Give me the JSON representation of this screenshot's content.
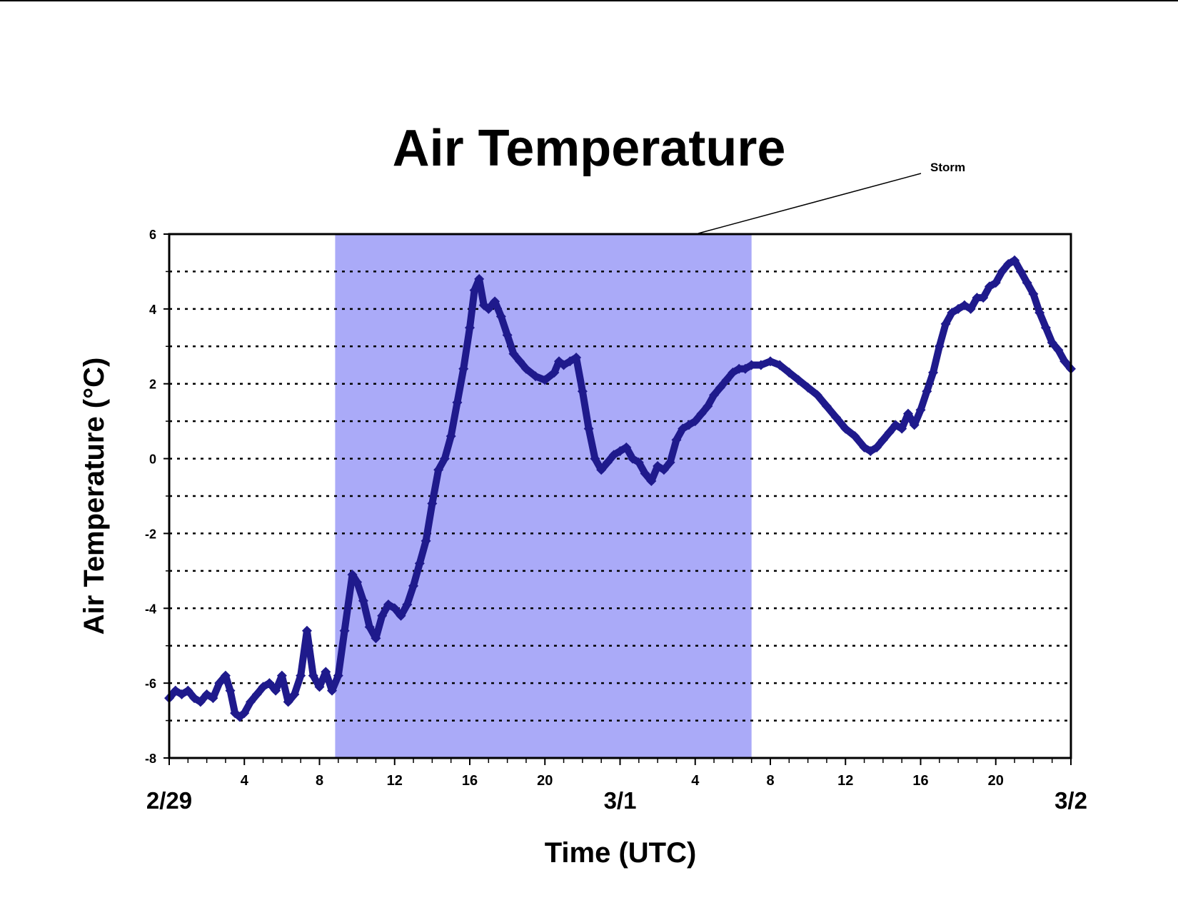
{
  "chart_data": {
    "type": "scatter",
    "title": "Air Temperature",
    "xlabel": "Time (UTC)",
    "ylabel": "Air Temperature (°C)",
    "xlim": [
      "2/29 00:00",
      "3/2 00:00"
    ],
    "ylim": [
      -8,
      6
    ],
    "yticks": [
      -8,
      -6,
      -4,
      -2,
      0,
      2,
      4,
      6
    ],
    "xtick_labels": [
      {
        "hour": 4,
        "label": "4"
      },
      {
        "hour": 8,
        "label": "8"
      },
      {
        "hour": 12,
        "label": "12"
      },
      {
        "hour": 16,
        "label": "16"
      },
      {
        "hour": 20,
        "label": "20"
      },
      {
        "hour": 28,
        "label": "4"
      },
      {
        "hour": 32,
        "label": "8"
      },
      {
        "hour": 36,
        "label": "12"
      },
      {
        "hour": 40,
        "label": "16"
      },
      {
        "hour": 44,
        "label": "20"
      }
    ],
    "date_labels": [
      {
        "hour": 0,
        "label": "2/29"
      },
      {
        "hour": 24,
        "label": "3/1"
      },
      {
        "hour": 48,
        "label": "3/2"
      }
    ],
    "grid": "horizontal dotted lines every 1 °C",
    "shaded_region": {
      "start": "2/29 08:50",
      "end": "3/1 07:00",
      "color": "#aaaaf8"
    },
    "annotation": {
      "text": "Storm"
    },
    "series": [
      {
        "marker": "diamond",
        "color": "#1f1a8c",
        "points": [
          {
            "t": "2/29 00:00",
            "y": -6.4
          },
          {
            "t": "2/29 00:20",
            "y": -6.2
          },
          {
            "t": "2/29 00:40",
            "y": -6.3
          },
          {
            "t": "2/29 01:00",
            "y": -6.2
          },
          {
            "t": "2/29 01:20",
            "y": -6.4
          },
          {
            "t": "2/29 01:40",
            "y": -6.5
          },
          {
            "t": "2/29 02:00",
            "y": -6.3
          },
          {
            "t": "2/29 02:20",
            "y": -6.4
          },
          {
            "t": "2/29 02:40",
            "y": -6.0
          },
          {
            "t": "2/29 03:00",
            "y": -5.8
          },
          {
            "t": "2/29 03:15",
            "y": -6.2
          },
          {
            "t": "2/29 03:30",
            "y": -6.8
          },
          {
            "t": "2/29 03:45",
            "y": -6.9
          },
          {
            "t": "2/29 04:00",
            "y": -6.8
          },
          {
            "t": "2/29 04:20",
            "y": -6.5
          },
          {
            "t": "2/29 04:40",
            "y": -6.3
          },
          {
            "t": "2/29 05:00",
            "y": -6.1
          },
          {
            "t": "2/29 05:20",
            "y": -6.0
          },
          {
            "t": "2/29 05:40",
            "y": -6.2
          },
          {
            "t": "2/29 06:00",
            "y": -5.8
          },
          {
            "t": "2/29 06:20",
            "y": -6.5
          },
          {
            "t": "2/29 06:40",
            "y": -6.3
          },
          {
            "t": "2/29 07:00",
            "y": -5.8
          },
          {
            "t": "2/29 07:20",
            "y": -4.6
          },
          {
            "t": "2/29 07:40",
            "y": -5.8
          },
          {
            "t": "2/29 08:00",
            "y": -6.1
          },
          {
            "t": "2/29 08:20",
            "y": -5.7
          },
          {
            "t": "2/29 08:40",
            "y": -6.2
          },
          {
            "t": "2/29 09:00",
            "y": -5.8
          },
          {
            "t": "2/29 09:20",
            "y": -4.6
          },
          {
            "t": "2/29 09:45",
            "y": -3.1
          },
          {
            "t": "2/29 10:00",
            "y": -3.3
          },
          {
            "t": "2/29 10:20",
            "y": -3.8
          },
          {
            "t": "2/29 10:40",
            "y": -4.5
          },
          {
            "t": "2/29 11:00",
            "y": -4.8
          },
          {
            "t": "2/29 11:20",
            "y": -4.2
          },
          {
            "t": "2/29 11:40",
            "y": -3.9
          },
          {
            "t": "2/29 12:00",
            "y": -4.0
          },
          {
            "t": "2/29 12:20",
            "y": -4.2
          },
          {
            "t": "2/29 12:40",
            "y": -3.9
          },
          {
            "t": "2/29 13:00",
            "y": -3.4
          },
          {
            "t": "2/29 13:20",
            "y": -2.8
          },
          {
            "t": "2/29 13:40",
            "y": -2.2
          },
          {
            "t": "2/29 14:00",
            "y": -1.2
          },
          {
            "t": "2/29 14:20",
            "y": -0.3
          },
          {
            "t": "2/29 14:40",
            "y": 0.0
          },
          {
            "t": "2/29 15:00",
            "y": 0.6
          },
          {
            "t": "2/29 15:20",
            "y": 1.5
          },
          {
            "t": "2/29 15:40",
            "y": 2.4
          },
          {
            "t": "2/29 16:00",
            "y": 3.5
          },
          {
            "t": "2/29 16:15",
            "y": 4.5
          },
          {
            "t": "2/29 16:30",
            "y": 4.8
          },
          {
            "t": "2/29 16:45",
            "y": 4.1
          },
          {
            "t": "2/29 17:00",
            "y": 4.0
          },
          {
            "t": "2/29 17:20",
            "y": 4.2
          },
          {
            "t": "2/29 17:40",
            "y": 3.8
          },
          {
            "t": "2/29 18:00",
            "y": 3.3
          },
          {
            "t": "2/29 18:20",
            "y": 2.8
          },
          {
            "t": "2/29 18:40",
            "y": 2.6
          },
          {
            "t": "2/29 19:00",
            "y": 2.4
          },
          {
            "t": "2/29 19:30",
            "y": 2.2
          },
          {
            "t": "2/29 20:00",
            "y": 2.1
          },
          {
            "t": "2/29 20:30",
            "y": 2.3
          },
          {
            "t": "2/29 20:45",
            "y": 2.6
          },
          {
            "t": "2/29 21:00",
            "y": 2.5
          },
          {
            "t": "2/29 21:20",
            "y": 2.6
          },
          {
            "t": "2/29 21:40",
            "y": 2.7
          },
          {
            "t": "2/29 22:00",
            "y": 1.8
          },
          {
            "t": "2/29 22:20",
            "y": 0.8
          },
          {
            "t": "2/29 22:40",
            "y": 0.0
          },
          {
            "t": "2/29 23:00",
            "y": -0.3
          },
          {
            "t": "2/29 23:20",
            "y": -0.1
          },
          {
            "t": "2/29 23:40",
            "y": 0.1
          },
          {
            "t": "3/1 00:00",
            "y": 0.2
          },
          {
            "t": "3/1 00:20",
            "y": 0.3
          },
          {
            "t": "3/1 00:40",
            "y": 0.0
          },
          {
            "t": "3/1 01:00",
            "y": -0.1
          },
          {
            "t": "3/1 01:20",
            "y": -0.4
          },
          {
            "t": "3/1 01:40",
            "y": -0.6
          },
          {
            "t": "3/1 02:00",
            "y": -0.2
          },
          {
            "t": "3/1 02:20",
            "y": -0.3
          },
          {
            "t": "3/1 02:40",
            "y": -0.1
          },
          {
            "t": "3/1 03:00",
            "y": 0.5
          },
          {
            "t": "3/1 03:20",
            "y": 0.8
          },
          {
            "t": "3/1 03:40",
            "y": 0.9
          },
          {
            "t": "3/1 04:00",
            "y": 1.0
          },
          {
            "t": "3/1 04:20",
            "y": 1.2
          },
          {
            "t": "3/1 04:40",
            "y": 1.4
          },
          {
            "t": "3/1 05:00",
            "y": 1.7
          },
          {
            "t": "3/1 05:20",
            "y": 1.9
          },
          {
            "t": "3/1 05:40",
            "y": 2.1
          },
          {
            "t": "3/1 06:00",
            "y": 2.3
          },
          {
            "t": "3/1 06:20",
            "y": 2.4
          },
          {
            "t": "3/1 06:40",
            "y": 2.4
          },
          {
            "t": "3/1 07:00",
            "y": 2.5
          },
          {
            "t": "3/1 07:30",
            "y": 2.5
          },
          {
            "t": "3/1 08:00",
            "y": 2.6
          },
          {
            "t": "3/1 08:30",
            "y": 2.5
          },
          {
            "t": "3/1 09:00",
            "y": 2.3
          },
          {
            "t": "3/1 09:30",
            "y": 2.1
          },
          {
            "t": "3/1 10:00",
            "y": 1.9
          },
          {
            "t": "3/1 10:30",
            "y": 1.7
          },
          {
            "t": "3/1 11:00",
            "y": 1.4
          },
          {
            "t": "3/1 11:30",
            "y": 1.1
          },
          {
            "t": "3/1 12:00",
            "y": 0.8
          },
          {
            "t": "3/1 12:30",
            "y": 0.6
          },
          {
            "t": "3/1 13:00",
            "y": 0.3
          },
          {
            "t": "3/1 13:20",
            "y": 0.2
          },
          {
            "t": "3/1 13:40",
            "y": 0.3
          },
          {
            "t": "3/1 14:00",
            "y": 0.5
          },
          {
            "t": "3/1 14:20",
            "y": 0.7
          },
          {
            "t": "3/1 14:40",
            "y": 0.9
          },
          {
            "t": "3/1 15:00",
            "y": 0.8
          },
          {
            "t": "3/1 15:20",
            "y": 1.2
          },
          {
            "t": "3/1 15:40",
            "y": 0.9
          },
          {
            "t": "3/1 16:00",
            "y": 1.3
          },
          {
            "t": "3/1 16:20",
            "y": 1.8
          },
          {
            "t": "3/1 16:40",
            "y": 2.3
          },
          {
            "t": "3/1 17:00",
            "y": 3.0
          },
          {
            "t": "3/1 17:20",
            "y": 3.6
          },
          {
            "t": "3/1 17:40",
            "y": 3.9
          },
          {
            "t": "3/1 18:00",
            "y": 4.0
          },
          {
            "t": "3/1 18:20",
            "y": 4.1
          },
          {
            "t": "3/1 18:40",
            "y": 4.0
          },
          {
            "t": "3/1 19:00",
            "y": 4.3
          },
          {
            "t": "3/1 19:20",
            "y": 4.3
          },
          {
            "t": "3/1 19:40",
            "y": 4.6
          },
          {
            "t": "3/1 20:00",
            "y": 4.7
          },
          {
            "t": "3/1 20:20",
            "y": 5.0
          },
          {
            "t": "3/1 20:40",
            "y": 5.2
          },
          {
            "t": "3/1 21:00",
            "y": 5.3
          },
          {
            "t": "3/1 21:20",
            "y": 5.0
          },
          {
            "t": "3/1 21:40",
            "y": 4.7
          },
          {
            "t": "3/1 22:00",
            "y": 4.4
          },
          {
            "t": "3/1 22:20",
            "y": 3.9
          },
          {
            "t": "3/1 22:40",
            "y": 3.5
          },
          {
            "t": "3/1 23:00",
            "y": 3.1
          },
          {
            "t": "3/1 23:20",
            "y": 2.9
          },
          {
            "t": "3/1 23:40",
            "y": 2.6
          },
          {
            "t": "3/2 00:00",
            "y": 2.4
          }
        ]
      }
    ]
  }
}
